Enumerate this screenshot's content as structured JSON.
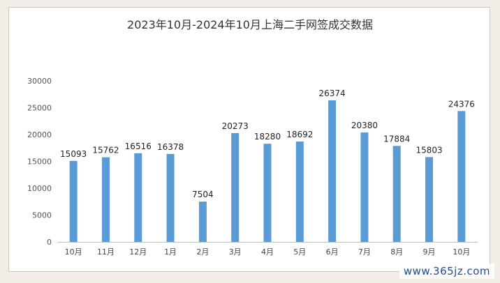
{
  "chart_data": {
    "type": "bar",
    "title": "2023年10月-2024年10月上海二手网签成交数据",
    "xlabel": "",
    "ylabel": "",
    "categories": [
      "10月",
      "11月",
      "12月",
      "1月",
      "2月",
      "3月",
      "4月",
      "5月",
      "6月",
      "7月",
      "8月",
      "9月",
      "10月"
    ],
    "values": [
      15093,
      15762,
      16516,
      16378,
      7504,
      20273,
      18280,
      18692,
      26374,
      20380,
      17884,
      15803,
      24376
    ],
    "ylim": [
      0,
      30000
    ],
    "yticks": [
      0,
      5000,
      10000,
      15000,
      20000,
      25000,
      30000
    ],
    "grid": false,
    "legend": "none",
    "bar_color": "#5b9bd5"
  },
  "watermark": "www.365jz.com"
}
